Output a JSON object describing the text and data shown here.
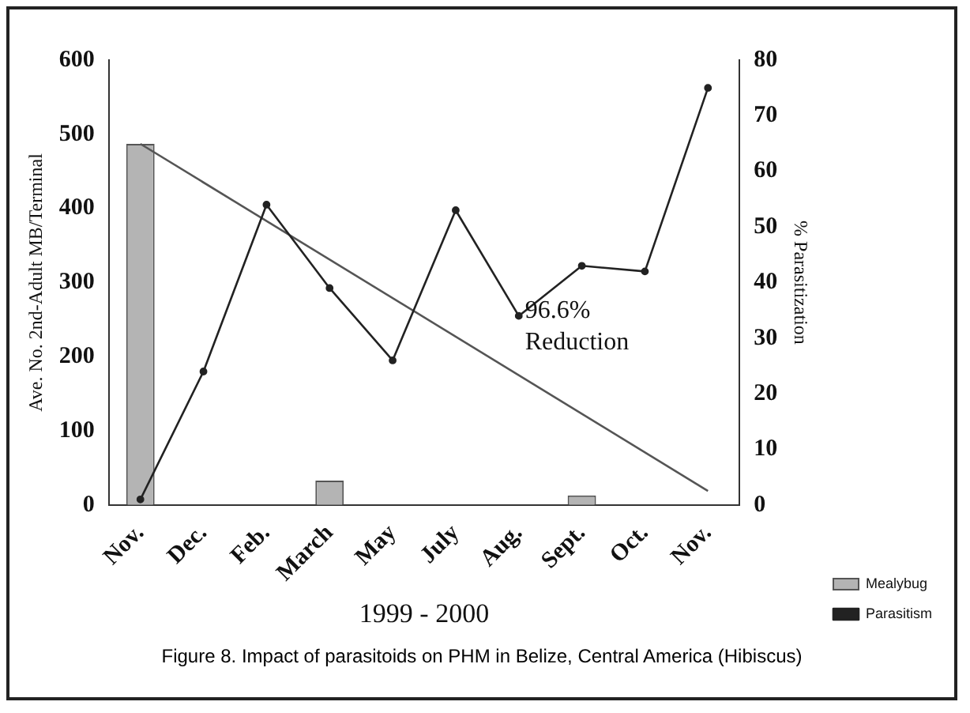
{
  "chart_data": {
    "type": "bar",
    "xlabel": "1999 - 2000",
    "ylabel": "Ave. No. 2nd-Adult MB/Terminal",
    "y2label": "% Parasitization",
    "categories": [
      "Nov.",
      "Dec.",
      "Feb.",
      "March",
      "May",
      "July",
      "Aug.",
      "Sept.",
      "Oct.",
      "Nov."
    ],
    "series": [
      {
        "name": "Mealybug",
        "color": "#b4b4b4",
        "values": [
          487,
          0,
          0,
          33,
          0,
          0,
          0,
          13,
          0,
          0
        ]
      },
      {
        "name": "Parasitism",
        "type": "line",
        "axis": "y2",
        "color": "#222222",
        "marker": "circle",
        "values": [
          1,
          24,
          54,
          39,
          26,
          53,
          34,
          43,
          42,
          75
        ]
      },
      {
        "type": "line",
        "color": "#555555",
        "values": [
          487,
          null,
          null,
          null,
          null,
          null,
          null,
          null,
          null,
          19
        ]
      }
    ],
    "ylim": [
      0,
      600
    ],
    "yticks": [
      0,
      100,
      200,
      300,
      400,
      500,
      600
    ],
    "y2lim": [
      0,
      80
    ],
    "y2ticks": [
      0,
      10,
      20,
      30,
      40,
      50,
      60,
      70,
      80
    ],
    "grid": false,
    "legend": "right",
    "annotations": [
      "96.6% Reduction",
      "Figure 8.  Impact of parasitoids on PHM in Belize, Central America (Hibiscus)"
    ]
  }
}
